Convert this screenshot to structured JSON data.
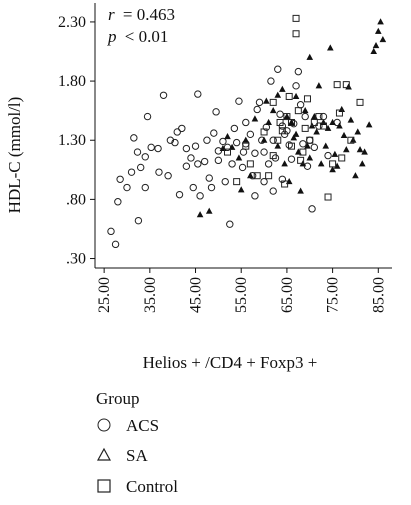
{
  "chart_data": {
    "type": "scatter",
    "xlabel": "Helios + /CD4 + Foxp3 +",
    "ylabel": "HDL-C (mmol/l)",
    "xlim": [
      23,
      88
    ],
    "ylim": [
      0.22,
      2.46
    ],
    "x_ticks": [
      "25.00",
      "35.00",
      "45.00",
      "55.00",
      "65.00",
      "75.00",
      "85.00"
    ],
    "x_tick_values": [
      25,
      35,
      45,
      55,
      65,
      75,
      85
    ],
    "y_ticks": [
      "2.30",
      "1.80",
      "1.30",
      ".80",
      ".30"
    ],
    "y_tick_values": [
      2.3,
      1.8,
      1.3,
      0.8,
      0.3
    ],
    "grid": false,
    "annotations": {
      "r_label": "r",
      "r_value": "= 0.463",
      "p_label": "p",
      "p_value": "< 0.01"
    },
    "legend": {
      "title": "Group",
      "placement": "bottom-left",
      "items": [
        {
          "name": "ACS",
          "marker": "circle"
        },
        {
          "name": "SA",
          "marker": "triangle"
        },
        {
          "name": "Control",
          "marker": "square"
        }
      ]
    },
    "series": [
      {
        "name": "ACS",
        "marker": "circle",
        "points": [
          [
            26.5,
            0.53
          ],
          [
            27.5,
            0.42
          ],
          [
            28,
            0.78
          ],
          [
            28.5,
            0.97
          ],
          [
            30,
            0.9
          ],
          [
            31,
            1.03
          ],
          [
            31.5,
            1.32
          ],
          [
            32.3,
            1.2
          ],
          [
            32.5,
            0.62
          ],
          [
            33,
            1.07
          ],
          [
            34,
            1.16
          ],
          [
            34,
            0.9
          ],
          [
            34.5,
            1.5
          ],
          [
            35.3,
            1.24
          ],
          [
            36.8,
            1.23
          ],
          [
            37,
            1.03
          ],
          [
            38,
            1.68
          ],
          [
            39,
            1.0
          ],
          [
            39.5,
            1.3
          ],
          [
            40.5,
            1.28
          ],
          [
            41,
            1.37
          ],
          [
            41.5,
            0.84
          ],
          [
            42,
            1.4
          ],
          [
            43,
            1.23
          ],
          [
            43,
            1.08
          ],
          [
            44,
            1.15
          ],
          [
            44.5,
            0.9
          ],
          [
            45,
            1.25
          ],
          [
            45.5,
            1.69
          ],
          [
            45.5,
            1.1
          ],
          [
            46,
            0.83
          ],
          [
            47,
            1.12
          ],
          [
            47.5,
            1.3
          ],
          [
            48,
            0.98
          ],
          [
            48.5,
            0.9
          ],
          [
            49,
            1.36
          ],
          [
            49.5,
            1.54
          ],
          [
            50,
            1.21
          ],
          [
            51,
            1.29
          ],
          [
            51.5,
            0.95
          ],
          [
            52,
            1.24
          ],
          [
            52.5,
            0.59
          ],
          [
            53,
            1.1
          ],
          [
            53.5,
            1.4
          ],
          [
            54,
            1.28
          ],
          [
            54.5,
            1.63
          ],
          [
            55.3,
            1.07
          ],
          [
            55.5,
            1.2
          ],
          [
            56,
            1.45
          ],
          [
            57,
            1.35
          ],
          [
            57.5,
            1.0
          ],
          [
            58,
            1.19
          ],
          [
            58.5,
            1.56
          ],
          [
            59,
            1.62
          ],
          [
            59.5,
            1.3
          ],
          [
            60,
            1.2
          ],
          [
            60.5,
            1.41
          ],
          [
            61,
            1.1
          ],
          [
            61.5,
            1.8
          ],
          [
            62,
            1.3
          ],
          [
            62.5,
            1.15
          ],
          [
            63,
            1.9
          ],
          [
            63.5,
            1.52
          ],
          [
            64,
            1.42
          ],
          [
            64.5,
            1.35
          ],
          [
            65,
            1.38
          ],
          [
            65.5,
            1.26
          ],
          [
            66,
            1.14
          ],
          [
            66.5,
            1.44
          ],
          [
            67,
            1.76
          ],
          [
            67.5,
            1.88
          ],
          [
            68,
            1.6
          ],
          [
            68.5,
            1.27
          ],
          [
            69,
            1.5
          ],
          [
            69.5,
            1.08
          ],
          [
            70,
            1.3
          ],
          [
            70.5,
            0.72
          ],
          [
            71,
            1.24
          ],
          [
            72,
            1.42
          ],
          [
            73,
            1.5
          ],
          [
            74,
            1.17
          ],
          [
            76,
            1.45
          ],
          [
            60,
            0.95
          ],
          [
            58,
            0.83
          ],
          [
            62,
            0.87
          ],
          [
            64,
            0.97
          ],
          [
            56,
            1.27
          ],
          [
            50,
            1.13
          ]
        ]
      },
      {
        "name": "SA",
        "marker": "triangle",
        "points": [
          [
            46,
            0.67
          ],
          [
            48,
            0.7
          ],
          [
            51,
            1.23
          ],
          [
            52,
            1.33
          ],
          [
            53,
            1.24
          ],
          [
            54.5,
            1.15
          ],
          [
            55,
            0.88
          ],
          [
            56,
            1.3
          ],
          [
            57,
            1.0
          ],
          [
            58,
            1.48
          ],
          [
            60,
            1.3
          ],
          [
            60.5,
            1.63
          ],
          [
            61,
            1.45
          ],
          [
            62,
            1.55
          ],
          [
            63,
            1.68
          ],
          [
            64,
            1.73
          ],
          [
            64.5,
            1.1
          ],
          [
            65,
            1.5
          ],
          [
            65.5,
            0.95
          ],
          [
            66,
            1.45
          ],
          [
            66.5,
            1.32
          ],
          [
            67,
            1.67
          ],
          [
            67.5,
            1.2
          ],
          [
            68,
            0.87
          ],
          [
            68.5,
            1.1
          ],
          [
            69,
            1.55
          ],
          [
            69.5,
            1.25
          ],
          [
            70,
            2.0
          ],
          [
            70.5,
            1.42
          ],
          [
            71,
            1.5
          ],
          [
            71.5,
            1.37
          ],
          [
            72,
            1.76
          ],
          [
            72.5,
            1.1
          ],
          [
            73,
            1.45
          ],
          [
            73.5,
            1.25
          ],
          [
            74,
            1.4
          ],
          [
            74.5,
            2.08
          ],
          [
            75,
            1.05
          ],
          [
            75.5,
            1.18
          ],
          [
            76,
            1.08
          ],
          [
            76.5,
            1.42
          ],
          [
            77,
            1.56
          ],
          [
            77.5,
            1.34
          ],
          [
            78,
            1.22
          ],
          [
            78.5,
            1.75
          ],
          [
            79,
            1.47
          ],
          [
            79.5,
            1.3
          ],
          [
            80,
            1.0
          ],
          [
            80.5,
            1.37
          ],
          [
            81,
            1.22
          ],
          [
            81.5,
            1.1
          ],
          [
            82,
            1.2
          ],
          [
            83,
            1.43
          ],
          [
            84,
            2.05
          ],
          [
            84.5,
            2.1
          ],
          [
            85,
            2.22
          ],
          [
            85.5,
            2.3
          ],
          [
            86,
            2.15
          ],
          [
            67,
            1.35
          ],
          [
            63,
            1.25
          ],
          [
            70,
            1.15
          ],
          [
            75,
            1.45
          ]
        ]
      },
      {
        "name": "Control",
        "marker": "square",
        "points": [
          [
            52,
            1.2
          ],
          [
            54,
            0.95
          ],
          [
            57,
            1.1
          ],
          [
            60,
            1.37
          ],
          [
            61,
            1.0
          ],
          [
            62,
            1.62
          ],
          [
            63,
            1.3
          ],
          [
            64,
            1.38
          ],
          [
            64.5,
            0.93
          ],
          [
            65,
            1.5
          ],
          [
            65.5,
            1.67
          ],
          [
            66,
            1.25
          ],
          [
            67,
            2.33
          ],
          [
            67,
            2.2
          ],
          [
            67.5,
            1.55
          ],
          [
            68,
            1.13
          ],
          [
            68.5,
            1.2
          ],
          [
            69,
            1.4
          ],
          [
            70,
            1.3
          ],
          [
            71,
            1.45
          ],
          [
            72,
            1.5
          ],
          [
            73,
            1.42
          ],
          [
            74,
            0.82
          ],
          [
            75,
            1.1
          ],
          [
            76,
            1.77
          ],
          [
            76.5,
            1.53
          ],
          [
            77,
            1.15
          ],
          [
            78,
            1.77
          ],
          [
            79,
            1.3
          ],
          [
            81,
            1.62
          ],
          [
            66,
            1.45
          ],
          [
            63.5,
            1.45
          ],
          [
            62,
            1.17
          ],
          [
            58.5,
            1.0
          ],
          [
            56,
            1.25
          ],
          [
            69.5,
            1.65
          ]
        ]
      }
    ]
  }
}
